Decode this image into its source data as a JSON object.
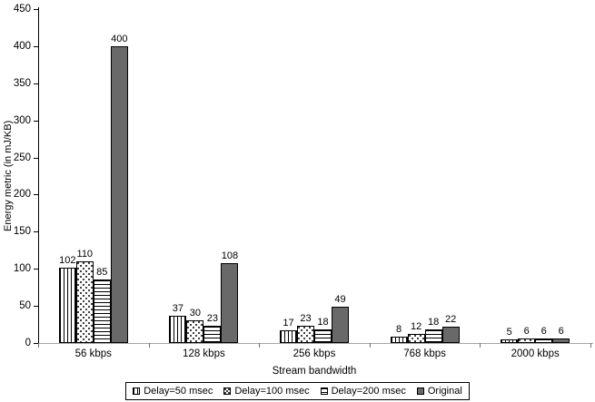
{
  "chart_data": {
    "type": "bar",
    "title": "",
    "xlabel": "Stream bandwidth",
    "ylabel": "Energy metric (in mJ/KB)",
    "ylim": [
      0,
      450
    ],
    "ytick_step": 50,
    "grid": false,
    "legend_position": "bottom",
    "categories": [
      "56 kbps",
      "128 kbps",
      "256 kbps",
      "768 kbps",
      "2000 kbps"
    ],
    "series": [
      {
        "name": "Delay=50 msec",
        "pattern": "vertical-stripes",
        "values": [
          102,
          37,
          17,
          8,
          5
        ]
      },
      {
        "name": "Delay=100 msec",
        "pattern": "dots",
        "values": [
          110,
          30,
          23,
          12,
          6
        ]
      },
      {
        "name": "Delay=200 msec",
        "pattern": "horizontal-stripes",
        "values": [
          85,
          23,
          18,
          18,
          6
        ]
      },
      {
        "name": "Original",
        "pattern": "solid",
        "values": [
          400,
          108,
          49,
          22,
          6
        ]
      }
    ],
    "colors": {
      "solid_fill": "#696969",
      "bar_border": "#000000",
      "y_axis_line": "#000000",
      "x_axis_line": "#a6a6a6",
      "text": "#000000",
      "background": "#ffffff"
    }
  }
}
